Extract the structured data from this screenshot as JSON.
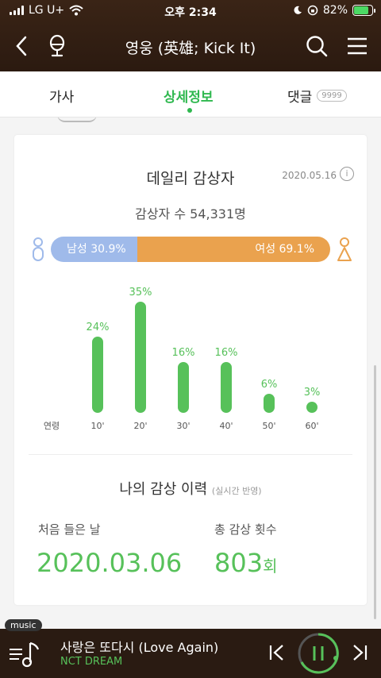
{
  "status": {
    "carrier": "LG U+",
    "time": "오후 2:34",
    "battery": "82%"
  },
  "header": {
    "title": "영웅 (英雄; Kick It)"
  },
  "tabs": [
    {
      "label": "가사"
    },
    {
      "label": "상세정보"
    },
    {
      "label": "댓글",
      "badge": "9999"
    }
  ],
  "daily": {
    "title": "데일리 감상자",
    "date": "2020.05.16",
    "info": "i",
    "listeners": "감상자 수 54,331명",
    "male_label": "남성 30.9%",
    "female_label": "여성 69.1%",
    "male_fraction": 0.309
  },
  "chart_data": {
    "type": "bar",
    "xlabel": "연령",
    "categories": [
      "10'",
      "20'",
      "30'",
      "40'",
      "50'",
      "60'"
    ],
    "values": [
      24,
      35,
      16,
      16,
      6,
      3
    ],
    "value_labels": [
      "24%",
      "35%",
      "16%",
      "16%",
      "6%",
      "3%"
    ],
    "ylim": [
      0,
      35
    ],
    "color": "#57c15a",
    "grid": false
  },
  "history": {
    "title": "나의 감상 이력",
    "note": "(실시간 반영)",
    "first_label": "처음 들은 날",
    "first_value": "2020.03.06",
    "count_label": "총 감상 횟수",
    "count_value": "803",
    "count_unit": "회"
  },
  "player": {
    "tag": "music",
    "song": "사랑은 또다시 (Love Again)",
    "artist": "NCT DREAM"
  },
  "colors": {
    "accent": "#2fb84f",
    "male": "#9fbaea",
    "female": "#eaa24e",
    "header": "#2b1a10"
  }
}
